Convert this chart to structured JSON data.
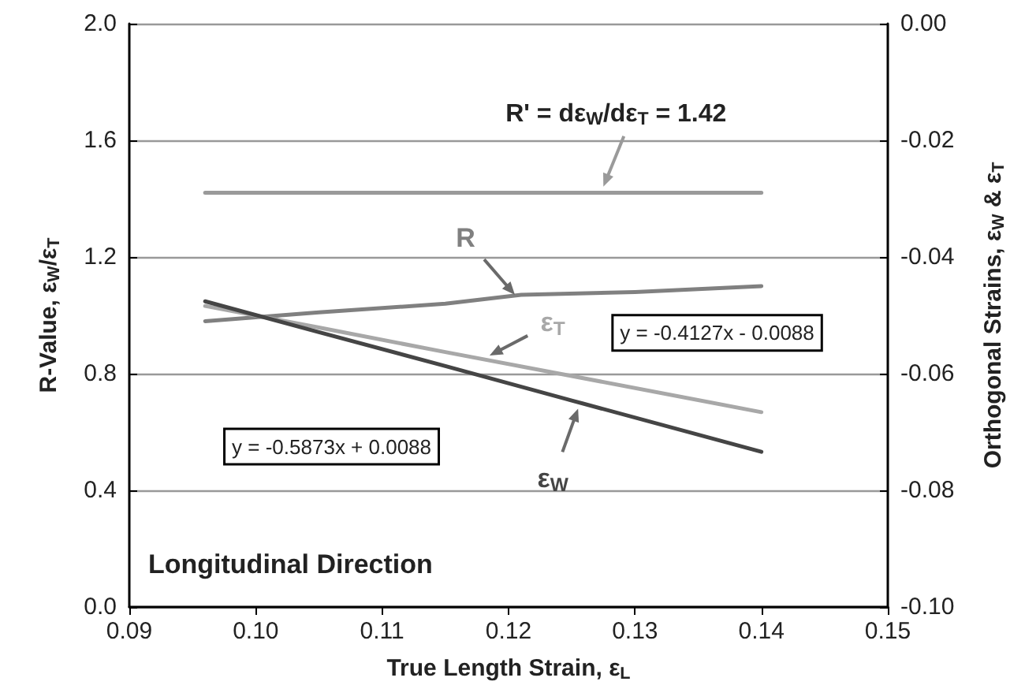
{
  "chart_data": {
    "type": "line",
    "xlabel": "True Length Strain, ε$_{L}$",
    "ylabel": "R-Value, ε$_{W}$/ε$_{T}$",
    "y2label": "Orthogonal Strains, ε$_{W}$ & ε$_{T}$",
    "xlim": [
      0.09,
      0.15
    ],
    "xticks": [
      {
        "value": 0.09,
        "label": "0.09"
      },
      {
        "value": 0.1,
        "label": "0.10"
      },
      {
        "value": 0.11,
        "label": "0.11"
      },
      {
        "value": 0.12,
        "label": "0.12"
      },
      {
        "value": 0.13,
        "label": "0.13"
      },
      {
        "value": 0.14,
        "label": "0.14"
      },
      {
        "value": 0.15,
        "label": "0.15"
      }
    ],
    "ylim": [
      0,
      2
    ],
    "yticks": [
      {
        "value": 0,
        "label": "0.0"
      },
      {
        "value": 0.4,
        "label": "0.4"
      },
      {
        "value": 0.8,
        "label": "0.8"
      },
      {
        "value": 1.2,
        "label": "1.2"
      },
      {
        "value": 1.6,
        "label": "1.6"
      },
      {
        "value": 2,
        "label": "2.0"
      }
    ],
    "y2lim": [
      -0.1,
      0
    ],
    "y2ticks": [
      {
        "value": -0.1,
        "label": "-0.10"
      },
      {
        "value": -0.08,
        "label": "-0.08"
      },
      {
        "value": -0.06,
        "label": "-0.06"
      },
      {
        "value": -0.04,
        "label": "-0.04"
      },
      {
        "value": -0.02,
        "label": "-0.02"
      },
      {
        "value": 0,
        "label": "0.00"
      }
    ],
    "series": [
      {
        "color": "#9a9a9a",
        "x": [
          0.096,
          0.14
        ],
        "values": [
          1.42,
          1.42
        ]
      },
      {
        "name": "R",
        "color": "#808080",
        "x": [
          0.096,
          0.105,
          0.115,
          0.121,
          0.13,
          0.14
        ],
        "values": [
          0.98,
          1.01,
          1.04,
          1.07,
          1.08,
          1.1
        ]
      },
      {
        "name": "ε$_{T}$",
        "color": "#a8a8a8",
        "axis": "y2",
        "x": [
          0.096,
          0.105,
          0.115,
          0.125,
          0.14
        ],
        "values": [
          -0.0484,
          -0.0521,
          -0.0563,
          -0.0604,
          -0.0666
        ]
      },
      {
        "name": "ε$_{W}$",
        "color": "#454545",
        "axis": "y2",
        "x": [
          0.096,
          0.105,
          0.115,
          0.125,
          0.14
        ],
        "values": [
          -0.0476,
          -0.0529,
          -0.0587,
          -0.0646,
          -0.0734
        ]
      }
    ],
    "annotations": [
      "R' = dε$_{W}$/dε$_{T}$ = 1.42",
      "y = -0.4127x - 0.0088",
      "y = -0.5873x + 0.0088",
      "Longitudinal Direction"
    ],
    "grid": "y",
    "legend": false,
    "marker": "none",
    "line_style": "solid"
  }
}
